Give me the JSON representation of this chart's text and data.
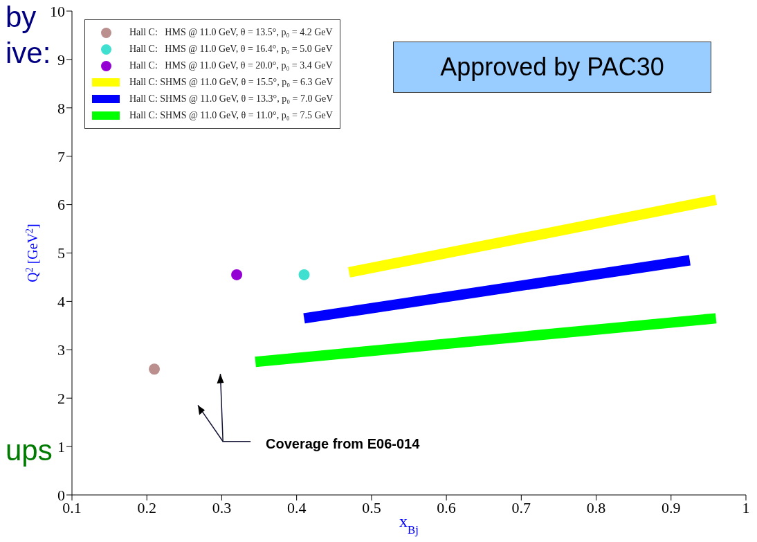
{
  "chart_data": {
    "type": "line",
    "xlabel": "x$_{Bj}$",
    "ylabel": "Q$^{2}$ [GeV$^{2}$]",
    "xlim": [
      0.1,
      1
    ],
    "xticks": [
      0.1,
      0.2,
      0.3,
      0.4,
      0.5,
      0.6,
      0.7,
      0.8,
      0.9,
      1
    ],
    "ylim": [
      0,
      10
    ],
    "yticks": [
      0,
      1,
      2,
      3,
      4,
      5,
      6,
      7,
      8,
      9,
      10
    ],
    "grid": false,
    "legend": "top left",
    "series": [
      {
        "name": "Hall C:   HMS @ 11.0 GeV, θ = 13.5°, p₀ = 4.2 GeV",
        "type": "scatter",
        "color": "#bc8f8f",
        "x": [
          0.21
        ],
        "values": [
          2.6
        ]
      },
      {
        "name": "Hall C:   HMS @ 11.0 GeV, θ = 16.4°, p₀ = 5.0 GeV",
        "type": "scatter",
        "color": "#40e0d0",
        "x": [
          0.41
        ],
        "values": [
          4.55
        ]
      },
      {
        "name": "Hall C:   HMS @ 11.0 GeV, θ = 20.0°, p₀ = 3.4 GeV",
        "type": "scatter",
        "color": "#9400d3",
        "x": [
          0.32
        ],
        "values": [
          4.55
        ]
      },
      {
        "name": "Hall C: SHMS @ 11.0 GeV, θ = 15.5°, p₀ = 6.3 GeV",
        "type": "line",
        "color": "#ffff00",
        "x": [
          0.47,
          0.96
        ],
        "values": [
          4.6,
          6.1
        ]
      },
      {
        "name": "Hall C: SHMS @ 11.0 GeV, θ = 13.3°, p₀ = 7.0 GeV",
        "type": "line",
        "color": "#0000ff",
        "x": [
          0.41,
          0.925
        ],
        "values": [
          3.65,
          4.85
        ]
      },
      {
        "name": "Hall C: SHMS @ 11.0 GeV, θ = 11.0°, p₀ = 7.5 GeV",
        "type": "line",
        "color": "#00ff00",
        "x": [
          0.345,
          0.96
        ],
        "values": [
          2.75,
          3.65
        ]
      }
    ],
    "annotations": [
      "by",
      "ive:",
      "ups",
      "Approved by PAC30",
      "Coverage from E06-014"
    ]
  }
}
